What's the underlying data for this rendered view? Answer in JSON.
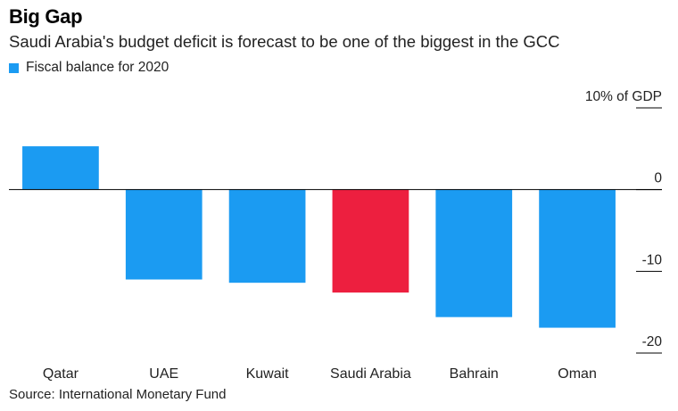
{
  "title": "Big Gap",
  "subtitle": "Saudi Arabia's budget deficit is forecast to be one of the biggest in the GCC",
  "source": "Source: International Monetary Fund",
  "colors": {
    "default_bar": "#1b9bf2",
    "highlight_bar": "#ed1f3f",
    "axis": "#000000"
  },
  "chart_data": {
    "type": "bar",
    "categories": [
      "Qatar",
      "UAE",
      "Kuwait",
      "Saudi Arabia",
      "Bahrain",
      "Oman"
    ],
    "series": [
      {
        "name": "Fiscal balance for 2020",
        "values": [
          5.3,
          -11,
          -11.4,
          -12.6,
          -15.6,
          -16.9
        ]
      }
    ],
    "highlight_category": "Saudi Arabia",
    "ylim": [
      -20,
      10
    ],
    "yticks": [
      10,
      0,
      -10,
      -20
    ],
    "ytick_labels": [
      "10% of GDP",
      "0",
      "-10",
      "-20"
    ],
    "ylabel": "",
    "xlabel": "",
    "legend_position": "top-left"
  }
}
